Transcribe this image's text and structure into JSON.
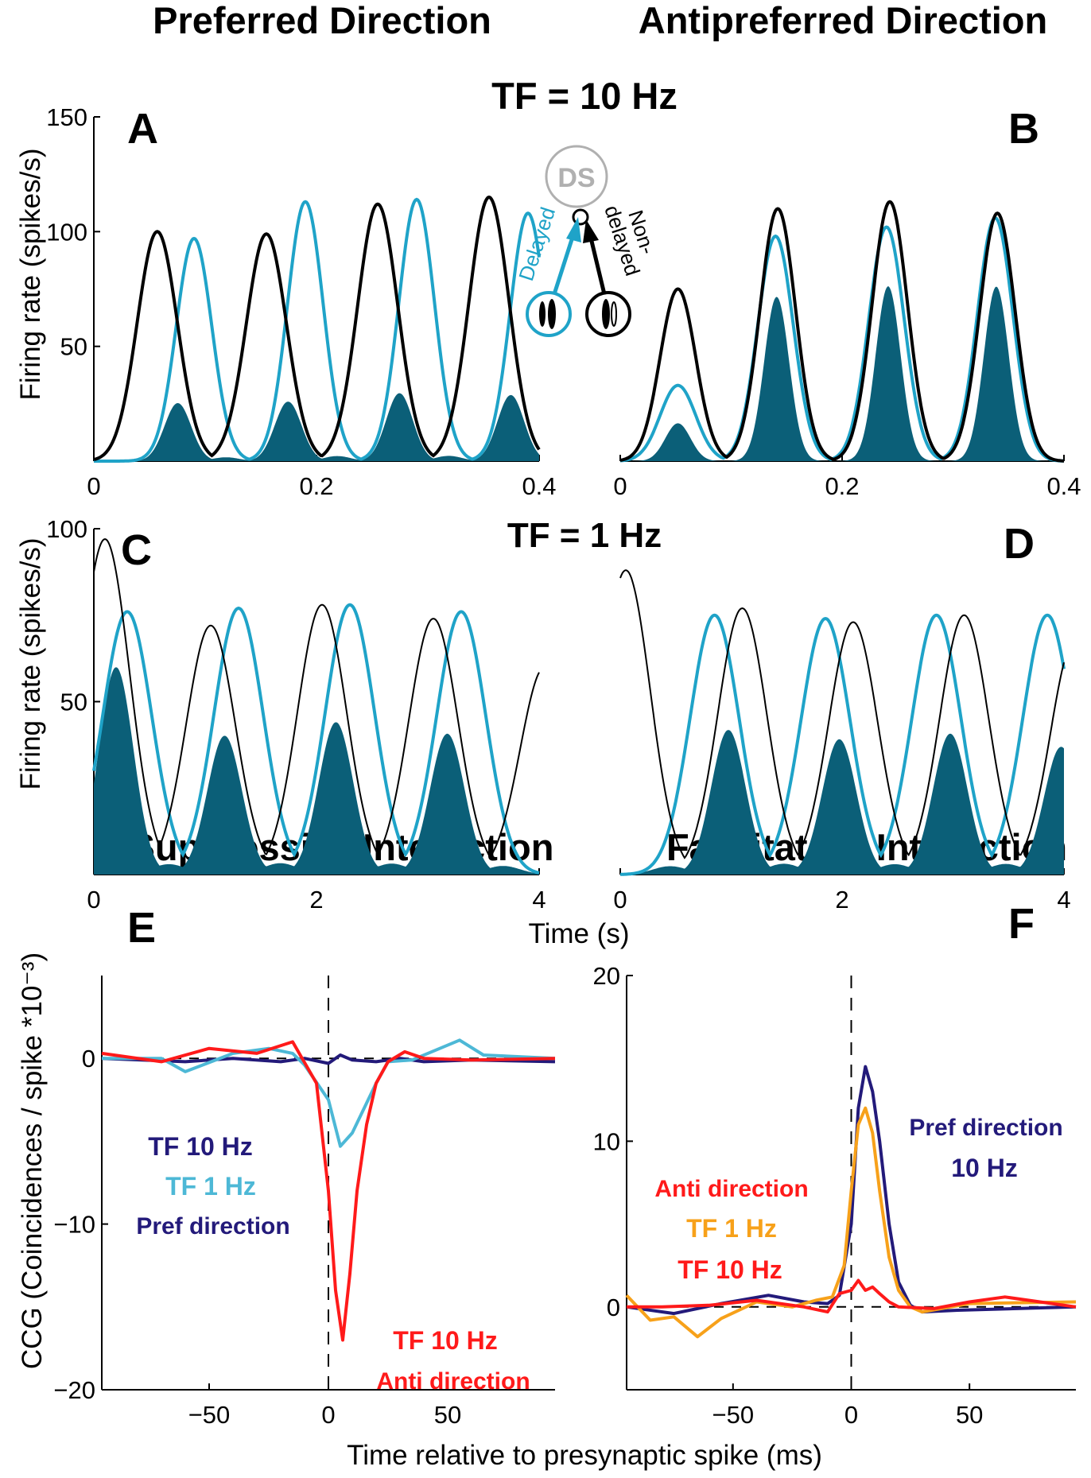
{
  "headers": {
    "preferred": "Preferred Direction",
    "antipreferred": "Antipreferred Direction",
    "tf10": "TF = 10 Hz",
    "tf1": "TF = 1 Hz",
    "suppressive": "Suppressive Interaction",
    "facilitatory": "Facilitatory Interaction"
  },
  "axis_labels": {
    "firing_rate": "Firing rate (spikes/s)",
    "time_s": "Time (s)",
    "ccg": "CCG (Coincidences / spike  *10⁻³)",
    "time_ms": "Time relative to presynaptic spike (ms)"
  },
  "inset": {
    "ds": "DS",
    "delayed": "Delayed",
    "nondelayed_1": "Non-",
    "nondelayed_2": "delayed"
  },
  "colors": {
    "delayed": "#1fa3c8",
    "nondelayed": "#000000",
    "product_fill": "#0b5f78",
    "tf10_pref": "#231a7a",
    "tf1_pref": "#4db8d6",
    "anti_10": "#ff1a1a",
    "anti_1": "#f7a11a"
  },
  "chart_data": [
    {
      "panel": "A",
      "type": "area",
      "title": "",
      "xlabel": "",
      "ylabel": "Firing rate (spikes/s)",
      "xlim": [
        0,
        0.4
      ],
      "ylim": [
        0,
        150
      ],
      "xticks": [
        0,
        0.2,
        0.4
      ],
      "xtick_labels": [
        "0",
        "0.2",
        "0.4"
      ],
      "yticks": [
        50,
        100,
        150
      ],
      "ytick_labels": [
        "50",
        "100",
        "150"
      ],
      "series": [
        {
          "name": "Non-delayed",
          "peaks_x": [
            0.057,
            0.155,
            0.255,
            0.355
          ],
          "peaks_y": [
            100,
            99,
            112,
            115
          ],
          "width": 0.018
        },
        {
          "name": "Delayed",
          "peaks_x": [
            0.09,
            0.19,
            0.29,
            0.39
          ],
          "peaks_y": [
            97,
            113,
            114,
            108
          ],
          "width": 0.016
        }
      ]
    },
    {
      "panel": "B",
      "type": "area",
      "title": "",
      "xlabel": "",
      "ylabel": "",
      "xlim": [
        0,
        0.4
      ],
      "ylim": [
        0,
        150
      ],
      "xticks": [
        0,
        0.2,
        0.4
      ],
      "xtick_labels": [
        "0",
        "0.2",
        "0.4"
      ],
      "yticks": [],
      "ytick_labels": [],
      "series": [
        {
          "name": "Non-delayed",
          "peaks_x": [
            0.052,
            0.142,
            0.243,
            0.34
          ],
          "peaks_y": [
            75,
            110,
            113,
            108
          ],
          "width": 0.016
        },
        {
          "name": "Delayed",
          "peaks_x": [
            0.052,
            0.14,
            0.24,
            0.338
          ],
          "peaks_y": [
            33,
            98,
            102,
            106
          ],
          "width": 0.016
        }
      ]
    },
    {
      "panel": "C",
      "type": "area",
      "title": "",
      "xlabel": "",
      "ylabel": "Firing rate (spikes/s)",
      "xlim": [
        0,
        4
      ],
      "ylim": [
        0,
        100
      ],
      "xticks": [
        0,
        2,
        4
      ],
      "xtick_labels": [
        "0",
        "2",
        "4"
      ],
      "yticks": [
        50,
        100
      ],
      "ytick_labels": [
        "50",
        "100"
      ],
      "series": [
        {
          "name": "Non-delayed",
          "peaks_x": [
            0.1,
            1.05,
            2.05,
            3.05,
            4.05
          ],
          "peaks_y": [
            97,
            72,
            78,
            74,
            60
          ],
          "width": 0.22
        },
        {
          "name": "Delayed",
          "peaks_x": [
            0.3,
            1.3,
            2.3,
            3.3
          ],
          "peaks_y": [
            76,
            77,
            78,
            76
          ],
          "width": 0.22
        }
      ]
    },
    {
      "panel": "D",
      "type": "area",
      "title": "",
      "xlabel": "Time (s)",
      "ylabel": "",
      "xlim": [
        0,
        4
      ],
      "ylim": [
        0,
        100
      ],
      "xticks": [
        0,
        2,
        4
      ],
      "xtick_labels": [
        "0",
        "2",
        "4"
      ],
      "yticks": [],
      "ytick_labels": [],
      "series": [
        {
          "name": "Non-delayed",
          "peaks_x": [
            0.05,
            1.1,
            2.1,
            3.1,
            4.1
          ],
          "peaks_y": [
            88,
            77,
            73,
            75,
            68
          ],
          "width": 0.22
        },
        {
          "name": "Delayed",
          "peaks_x": [
            0.85,
            1.85,
            2.85,
            3.85
          ],
          "peaks_y": [
            75,
            74,
            75,
            75
          ],
          "width": 0.22
        }
      ]
    },
    {
      "panel": "E",
      "type": "line",
      "title": "Suppressive Interaction",
      "xlabel": "",
      "ylabel": "CCG (Coincidences / spike  *10⁻³)",
      "xlim": [
        -95,
        95
      ],
      "ylim": [
        -20,
        5
      ],
      "xticks": [
        -50,
        0,
        50
      ],
      "xtick_labels": [
        "−50",
        "0",
        "50"
      ],
      "yticks": [
        -20,
        -10,
        0
      ],
      "ytick_labels": [
        "−20",
        "−10",
        "0"
      ],
      "series": [
        {
          "name": "TF 10 Hz",
          "x": [
            -95,
            -60,
            -40,
            -20,
            -10,
            0,
            5,
            10,
            20,
            30,
            40,
            60,
            95
          ],
          "y": [
            0,
            -0.2,
            0,
            -0.2,
            0,
            -0.3,
            0.2,
            -0.1,
            -0.2,
            0,
            -0.2,
            -0.1,
            -0.2
          ]
        },
        {
          "name": "TF 1 Hz",
          "x": [
            -95,
            -70,
            -60,
            -40,
            -25,
            -15,
            -10,
            0,
            5,
            10,
            15,
            20,
            25,
            35,
            45,
            55,
            65,
            95
          ],
          "y": [
            0,
            0,
            -0.8,
            0.3,
            0.6,
            0.3,
            -0.4,
            -2.5,
            -5.3,
            -4.5,
            -3,
            -1.5,
            -0.2,
            -0.1,
            0.5,
            1.1,
            0.2,
            0
          ]
        },
        {
          "name": "TF 10 Hz Anti direction",
          "x": [
            -95,
            -70,
            -50,
            -30,
            -15,
            -5,
            0,
            3,
            6,
            9,
            12,
            16,
            20,
            25,
            32,
            40,
            60,
            95
          ],
          "y": [
            0.3,
            -0.2,
            0.6,
            0.3,
            1,
            -1.5,
            -8,
            -14,
            -17,
            -13,
            -8,
            -4,
            -1.5,
            -0.2,
            0.4,
            0,
            -0.1,
            0
          ]
        }
      ]
    },
    {
      "panel": "F",
      "type": "line",
      "title": "Facilitatory Interaction",
      "xlabel": "Time relative to presynaptic spike (ms)",
      "ylabel": "",
      "xlim": [
        -95,
        95
      ],
      "ylim": [
        -5,
        20
      ],
      "xticks": [
        -50,
        0,
        50
      ],
      "xtick_labels": [
        "−50",
        "0",
        "50"
      ],
      "yticks": [
        0,
        10,
        20
      ],
      "ytick_labels": [
        "0",
        "10",
        "20"
      ],
      "series": [
        {
          "name": "Pref direction 10 Hz",
          "x": [
            -95,
            -75,
            -55,
            -35,
            -20,
            -10,
            -5,
            0,
            3,
            6,
            9,
            12,
            16,
            20,
            25,
            30,
            45,
            95
          ],
          "y": [
            0,
            -0.4,
            0.2,
            0.7,
            0.3,
            0.2,
            0.7,
            5,
            12,
            14.5,
            13,
            10,
            5,
            1.5,
            0.1,
            -0.3,
            -0.2,
            0
          ]
        },
        {
          "name": "TF 1 Hz",
          "x": [
            -95,
            -85,
            -75,
            -65,
            -55,
            -40,
            -25,
            -15,
            -8,
            -3,
            0,
            3,
            6,
            9,
            12,
            16,
            20,
            25,
            30,
            50,
            95
          ],
          "y": [
            0.7,
            -0.8,
            -0.6,
            -1.8,
            -0.7,
            0.3,
            0,
            0.4,
            0.6,
            2.5,
            7,
            11,
            12,
            10.5,
            7,
            3,
            1,
            0,
            -0.3,
            0.2,
            0.3
          ]
        },
        {
          "name": "TF 10 Hz Anti direction",
          "x": [
            -95,
            -80,
            -60,
            -40,
            -20,
            -10,
            -5,
            0,
            3,
            6,
            9,
            12,
            16,
            20,
            35,
            50,
            65,
            95
          ],
          "y": [
            0,
            0,
            0.1,
            0.4,
            0,
            -0.3,
            0.8,
            1,
            1.6,
            1,
            1.2,
            0.8,
            0.3,
            0,
            -0.1,
            0.3,
            0.6,
            0
          ]
        }
      ]
    }
  ],
  "panel_letters": {
    "A": "A",
    "B": "B",
    "C": "C",
    "D": "D",
    "E": "E",
    "F": "F"
  },
  "legend_e": {
    "tf10": "TF 10 Hz",
    "tf1": "TF 1 Hz",
    "pref": "Pref direction",
    "anti_tf10": "TF 10 Hz",
    "anti_dir": "Anti direction"
  },
  "legend_f": {
    "pref1": "Pref direction",
    "pref2": "10 Hz",
    "anti": "Anti direction",
    "tf1": "TF 1 Hz",
    "tf10": "TF 10 Hz"
  }
}
